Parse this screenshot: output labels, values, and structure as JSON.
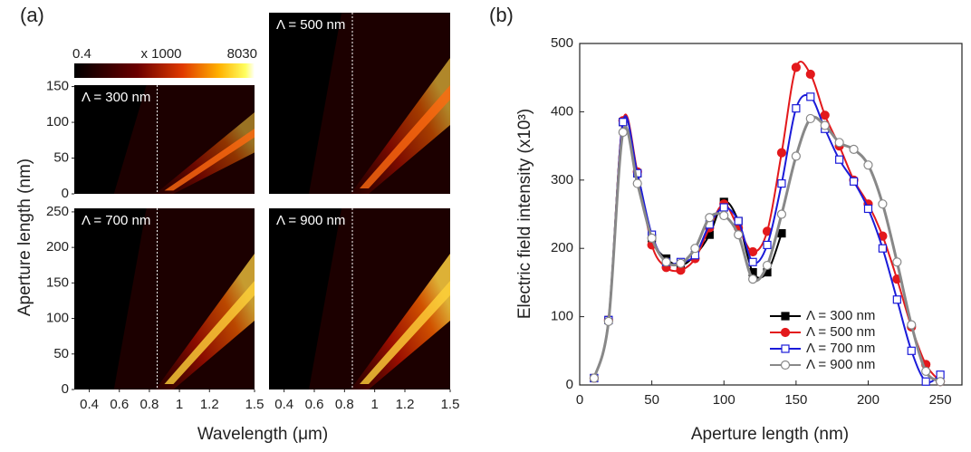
{
  "chart_data": [
    {
      "type": "heatmap",
      "panel_label": "(a)",
      "xlabel": "Wavelength (μm)",
      "ylabel": "Aperture length (nm)",
      "colorbar": {
        "min": 0.4,
        "max": 8030,
        "label": "x 1000"
      },
      "xlim": [
        0.3,
        1.5
      ],
      "xticks": [
        0.4,
        0.6,
        0.8,
        1,
        1.2,
        1.5
      ],
      "subplots": [
        {
          "label": "Λ = 300 nm",
          "ylim": [
            0,
            152
          ],
          "yticks": [
            0,
            50,
            100,
            150
          ]
        },
        {
          "label": "Λ = 500 nm"
        },
        {
          "label": "Λ = 700 nm",
          "ylim": [
            0,
            255
          ],
          "yticks": [
            0,
            50,
            100,
            150,
            200,
            250
          ]
        },
        {
          "label": "Λ = 900 nm"
        }
      ]
    },
    {
      "type": "line",
      "panel_label": "(b)",
      "xlabel": "Aperture length (nm)",
      "ylabel": "Electric field intensity (x10³)",
      "xlim": [
        0,
        265
      ],
      "xticks": [
        0,
        50,
        100,
        150,
        200,
        250
      ],
      "ylim": [
        0,
        500
      ],
      "yticks": [
        0,
        100,
        200,
        300,
        400,
        500
      ],
      "legend": "lower right",
      "series": [
        {
          "name": "Λ = 300 nm",
          "color": "#000000",
          "marker": "square-filled",
          "x": [
            10,
            20,
            30,
            40,
            50,
            60,
            70,
            80,
            90,
            100,
            110,
            120,
            130,
            140
          ],
          "values": [
            10,
            95,
            385,
            310,
            215,
            185,
            175,
            190,
            220,
            268,
            240,
            165,
            165,
            222
          ]
        },
        {
          "name": "Λ = 500 nm",
          "color": "#e3191c",
          "marker": "circle-filled",
          "x": [
            10,
            20,
            30,
            40,
            50,
            60,
            70,
            80,
            90,
            100,
            110,
            120,
            130,
            140,
            150,
            160,
            170,
            180,
            190,
            200,
            210,
            220,
            230,
            240,
            250
          ],
          "values": [
            10,
            95,
            387,
            312,
            205,
            172,
            168,
            185,
            230,
            265,
            230,
            195,
            225,
            340,
            465,
            455,
            395,
            350,
            300,
            265,
            218,
            155,
            85,
            30,
            5
          ]
        },
        {
          "name": "Λ = 700 nm",
          "color": "#1b1bd9",
          "marker": "square-open",
          "x": [
            10,
            20,
            30,
            40,
            50,
            60,
            70,
            80,
            90,
            100,
            110,
            120,
            130,
            140,
            150,
            160,
            170,
            180,
            190,
            200,
            210,
            220,
            230,
            240,
            250
          ],
          "values": [
            10,
            95,
            385,
            310,
            220,
            180,
            180,
            190,
            235,
            260,
            240,
            180,
            205,
            295,
            405,
            422,
            375,
            330,
            298,
            258,
            200,
            125,
            50,
            5,
            15
          ]
        },
        {
          "name": "Λ = 900 nm",
          "color": "#888888",
          "marker": "circle-open",
          "x": [
            10,
            20,
            30,
            40,
            50,
            60,
            70,
            80,
            90,
            100,
            110,
            120,
            130,
            140,
            150,
            160,
            170,
            180,
            190,
            200,
            210,
            220,
            230,
            240,
            250
          ],
          "values": [
            10,
            93,
            370,
            295,
            215,
            180,
            178,
            200,
            245,
            248,
            220,
            155,
            175,
            250,
            335,
            390,
            380,
            355,
            345,
            322,
            265,
            180,
            88,
            20,
            5
          ]
        }
      ]
    }
  ]
}
